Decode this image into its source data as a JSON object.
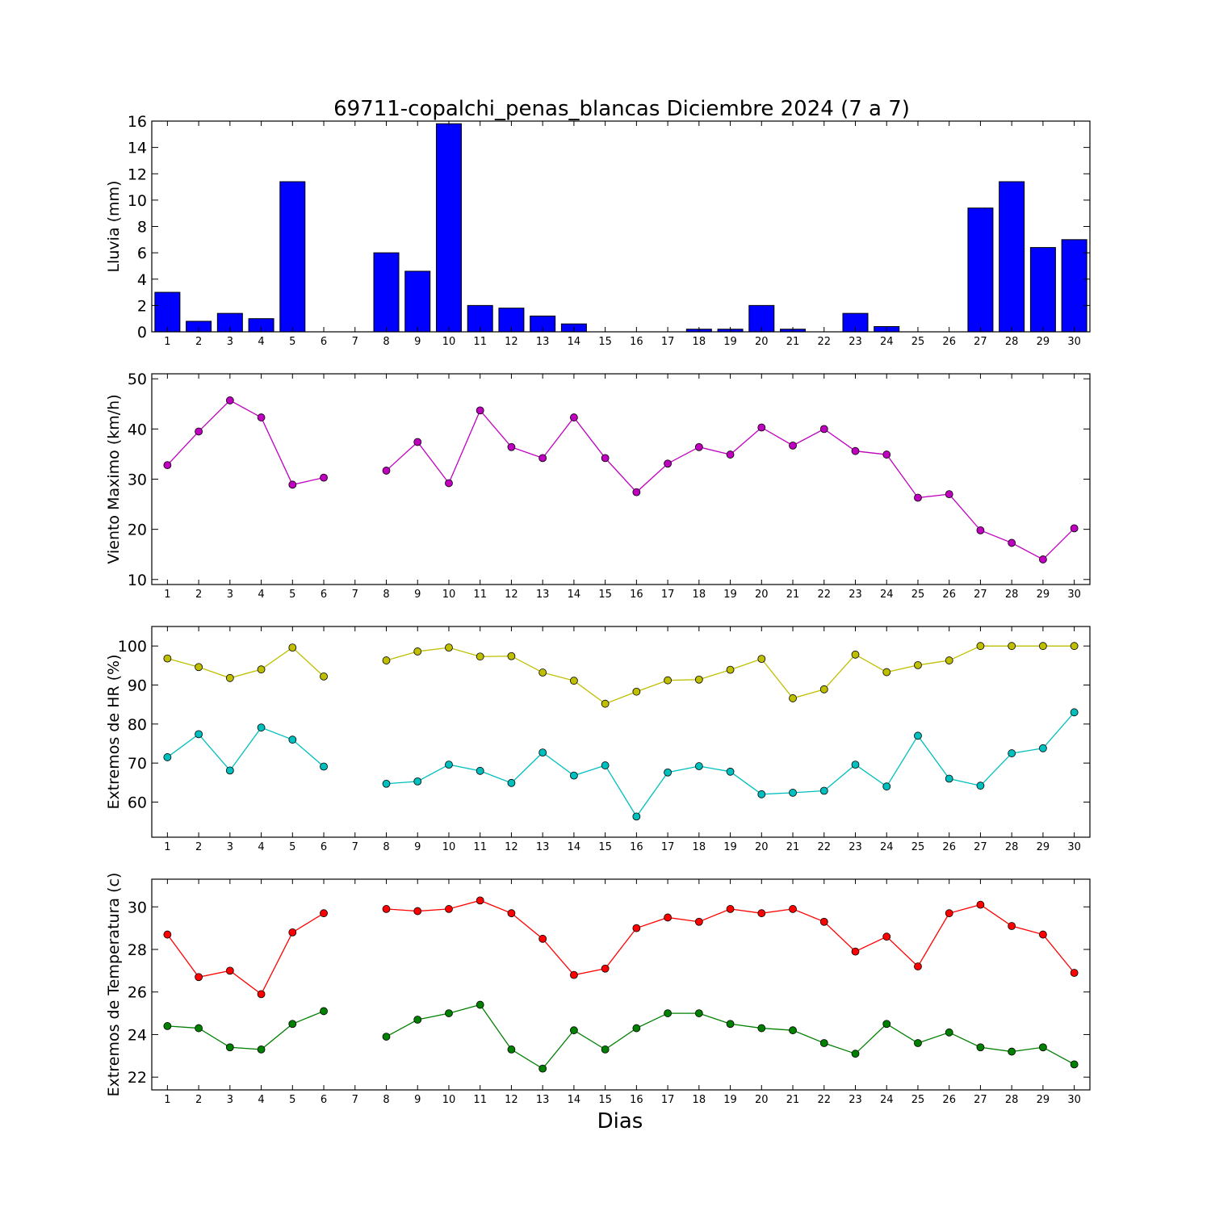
{
  "figure": {
    "title": "69711-copalchi_penas_blancas Diciembre 2024  (7 a 7)",
    "xlabel": "Dias"
  },
  "chart_data": [
    {
      "type": "bar",
      "ylabel": "Lluvia (mm)",
      "ylim": [
        0,
        16
      ],
      "yticks": [
        0,
        2,
        4,
        6,
        8,
        10,
        12,
        14,
        16
      ],
      "categories": [
        "1",
        "2",
        "3",
        "4",
        "5",
        "6",
        "7",
        "8",
        "9",
        "10",
        "11",
        "12",
        "13",
        "14",
        "15",
        "16",
        "17",
        "18",
        "19",
        "20",
        "21",
        "22",
        "23",
        "24",
        "25",
        "26",
        "27",
        "28",
        "29",
        "30"
      ],
      "series": [
        {
          "color": "#0000ff",
          "values": [
            3.0,
            0.8,
            1.4,
            1.0,
            11.4,
            0,
            0,
            6.0,
            4.6,
            15.8,
            2.0,
            1.8,
            1.2,
            0.6,
            0,
            0,
            0,
            0.2,
            0.2,
            2.0,
            0.2,
            0,
            1.4,
            0.4,
            0,
            0,
            9.4,
            11.4,
            6.4,
            7.0
          ]
        }
      ],
      "grid": false
    },
    {
      "type": "line",
      "ylabel": "Viento Maximo (km/h)",
      "ylim": [
        9,
        51
      ],
      "yticks": [
        10,
        20,
        30,
        40,
        50
      ],
      "categories": [
        "1",
        "2",
        "3",
        "4",
        "5",
        "6",
        "7",
        "8",
        "9",
        "10",
        "11",
        "12",
        "13",
        "14",
        "15",
        "16",
        "17",
        "18",
        "19",
        "20",
        "21",
        "22",
        "23",
        "24",
        "25",
        "26",
        "27",
        "28",
        "29",
        "30"
      ],
      "series": [
        {
          "color": "#bf00bf",
          "values": [
            32.8,
            39.5,
            45.7,
            42.3,
            28.9,
            30.3,
            null,
            31.7,
            37.4,
            29.2,
            43.7,
            36.4,
            34.2,
            42.3,
            34.2,
            27.4,
            33.1,
            36.4,
            34.9,
            40.3,
            36.7,
            40.0,
            35.6,
            34.9,
            26.3,
            27.0,
            19.8,
            17.3,
            14.0,
            20.2
          ]
        }
      ],
      "grid": false
    },
    {
      "type": "line",
      "ylabel": "Extremos de HR (%)",
      "ylim": [
        51,
        105
      ],
      "yticks": [
        60,
        70,
        80,
        90,
        100
      ],
      "categories": [
        "1",
        "2",
        "3",
        "4",
        "5",
        "6",
        "7",
        "8",
        "9",
        "10",
        "11",
        "12",
        "13",
        "14",
        "15",
        "16",
        "17",
        "18",
        "19",
        "20",
        "21",
        "22",
        "23",
        "24",
        "25",
        "26",
        "27",
        "28",
        "29",
        "30"
      ],
      "series": [
        {
          "color": "#bfbf00",
          "values": [
            96.8,
            94.6,
            91.8,
            94.0,
            99.6,
            92.2,
            null,
            96.3,
            98.6,
            99.6,
            97.3,
            97.4,
            93.2,
            91.1,
            85.2,
            88.3,
            91.2,
            91.4,
            93.9,
            96.7,
            86.6,
            88.9,
            97.8,
            93.3,
            95.1,
            96.3,
            100.0,
            100.0,
            100.0,
            100.0
          ]
        },
        {
          "color": "#00bfbf",
          "values": [
            71.5,
            77.4,
            68.1,
            79.1,
            76.0,
            69.1,
            null,
            64.7,
            65.3,
            69.6,
            68.0,
            64.9,
            72.7,
            66.8,
            69.4,
            56.3,
            67.6,
            69.2,
            67.8,
            62.0,
            62.4,
            62.9,
            69.6,
            64.0,
            77.0,
            66.0,
            64.2,
            72.5,
            73.8,
            83.0
          ]
        }
      ],
      "grid": false
    },
    {
      "type": "line",
      "ylabel": "Extremos de Temperatura (c)",
      "ylim": [
        21.4,
        31.3
      ],
      "yticks": [
        22,
        24,
        26,
        28,
        30
      ],
      "categories": [
        "1",
        "2",
        "3",
        "4",
        "5",
        "6",
        "7",
        "8",
        "9",
        "10",
        "11",
        "12",
        "13",
        "14",
        "15",
        "16",
        "17",
        "18",
        "19",
        "20",
        "21",
        "22",
        "23",
        "24",
        "25",
        "26",
        "27",
        "28",
        "29",
        "30"
      ],
      "series": [
        {
          "color": "#ff0000",
          "values": [
            28.7,
            26.7,
            27.0,
            25.9,
            28.8,
            29.7,
            null,
            29.9,
            29.8,
            29.9,
            30.3,
            29.7,
            28.5,
            26.8,
            27.1,
            29.0,
            29.5,
            29.3,
            29.9,
            29.7,
            29.9,
            29.3,
            27.9,
            28.6,
            27.2,
            29.7,
            30.1,
            29.1,
            28.7,
            26.9
          ]
        },
        {
          "color": "#008000",
          "values": [
            24.4,
            24.3,
            23.4,
            23.3,
            24.5,
            25.1,
            null,
            23.9,
            24.7,
            25.0,
            25.4,
            23.3,
            22.4,
            24.2,
            23.3,
            24.3,
            25.0,
            25.0,
            24.5,
            24.3,
            24.2,
            23.6,
            23.1,
            24.5,
            23.6,
            24.1,
            23.4,
            23.2,
            23.4,
            22.6
          ]
        }
      ],
      "grid": false
    }
  ]
}
